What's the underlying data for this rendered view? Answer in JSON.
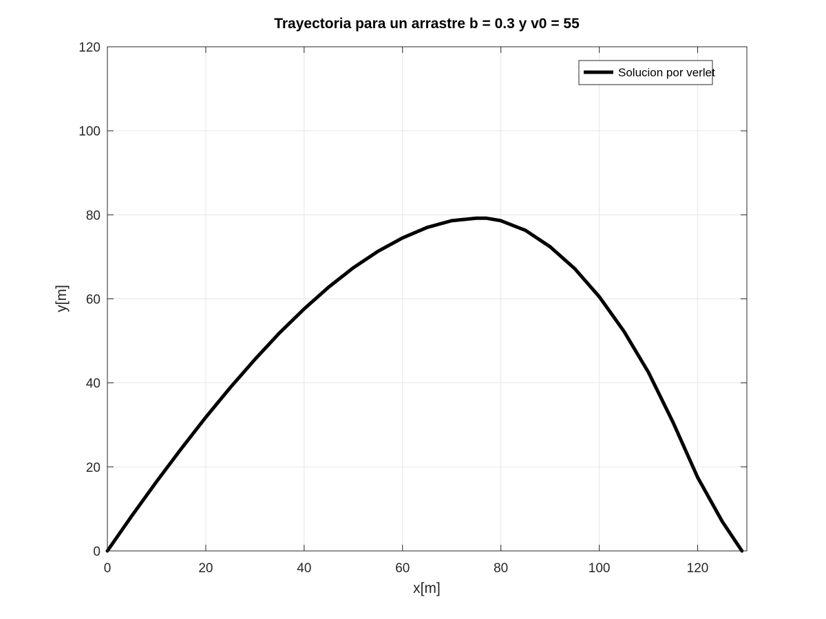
{
  "chart_data": {
    "type": "line",
    "title": "Trayectoria para un arrastre b = 0.3 y  v0 = 55",
    "xlabel": "x[m]",
    "ylabel": "y[m]",
    "xlim": [
      0,
      130
    ],
    "ylim": [
      0,
      120
    ],
    "xticks": [
      "0",
      "20",
      "40",
      "60",
      "80",
      "100",
      "120"
    ],
    "yticks": [
      "0",
      "20",
      "40",
      "60",
      "80",
      "100",
      "120"
    ],
    "grid": true,
    "legend_position": "top-right",
    "series": [
      {
        "name": "Solucion por verlet",
        "color": "#000000",
        "x": [
          0,
          5,
          10,
          15,
          20,
          25,
          30,
          35,
          40,
          45,
          50,
          55,
          60,
          65,
          70,
          75,
          77,
          80,
          85,
          90,
          95,
          100,
          105,
          110,
          115,
          120,
          125,
          129
        ],
        "y": [
          0,
          8.4,
          16.5,
          24.3,
          31.8,
          38.9,
          45.6,
          51.9,
          57.6,
          62.8,
          67.4,
          71.3,
          74.5,
          77.0,
          78.6,
          79.2,
          79.2,
          78.6,
          76.3,
          72.4,
          67.2,
          60.5,
          52.3,
          42.5,
          30.6,
          17.5,
          7.0,
          0
        ]
      }
    ]
  }
}
